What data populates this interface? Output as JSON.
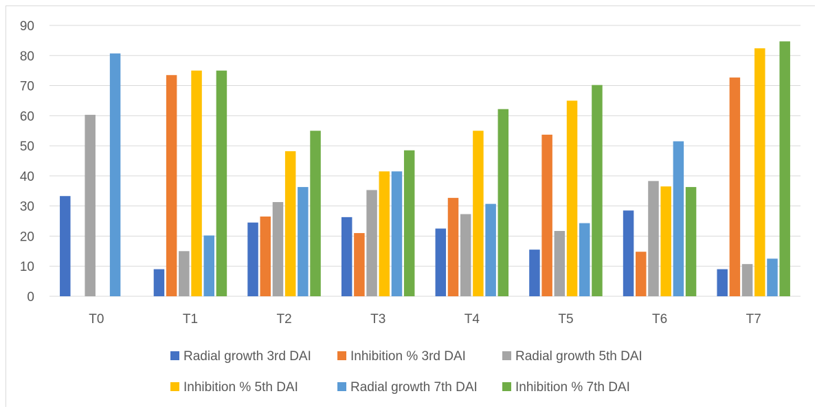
{
  "chart_data": {
    "type": "bar",
    "categories": [
      "T0",
      "T1",
      "T2",
      "T3",
      "T4",
      "T5",
      "T6",
      "T7"
    ],
    "ylim": [
      0,
      90
    ],
    "yticks": [
      0,
      10,
      20,
      30,
      40,
      50,
      60,
      70,
      80,
      90
    ],
    "grid": true,
    "legend_position": "bottom",
    "series": [
      {
        "name": "Radial growth 3rd DAI",
        "color": "#4472c4",
        "values": [
          33.3,
          9,
          24.5,
          26.3,
          22.5,
          15.5,
          28.5,
          9
        ]
      },
      {
        "name": "Inhibition % 3rd DAI",
        "color": "#ed7d31",
        "values": [
          0,
          73.5,
          26.5,
          21,
          32.7,
          53.7,
          14.8,
          72.7
        ]
      },
      {
        "name": "Radial growth 5th DAI",
        "color": "#a5a5a5",
        "values": [
          60.3,
          15,
          31.3,
          35.3,
          27.3,
          21.7,
          38.3,
          10.7
        ]
      },
      {
        "name": "Inhibition % 5th DAI",
        "color": "#ffc000",
        "values": [
          0,
          75,
          48.2,
          41.5,
          55,
          65,
          36.5,
          82.4
        ]
      },
      {
        "name": "Radial growth 7th DAI",
        "color": "#5b9bd5",
        "values": [
          80.7,
          20.2,
          36.3,
          41.5,
          30.7,
          24.3,
          51.5,
          12.5
        ]
      },
      {
        "name": "Inhibition % 7th DAI",
        "color": "#70ad47",
        "values": [
          0,
          75,
          55,
          48.5,
          62.2,
          70.2,
          36.3,
          84.7
        ]
      }
    ]
  }
}
